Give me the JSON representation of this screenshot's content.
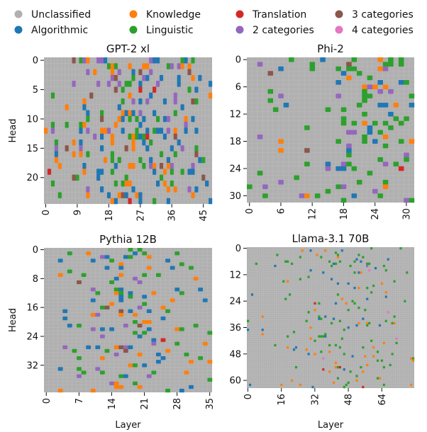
{
  "legend": [
    {
      "label": "Unclassified",
      "color": "#b0b0b0"
    },
    {
      "label": "Algorithmic",
      "color": "#1f77b4"
    },
    {
      "label": "Knowledge",
      "color": "#ff7f0e"
    },
    {
      "label": "Linguistic",
      "color": "#2ca02c"
    },
    {
      "label": "Translation",
      "color": "#d62728"
    },
    {
      "label": "2 categories",
      "color": "#9467bd"
    },
    {
      "label": "3 categories",
      "color": "#8c564b"
    },
    {
      "label": "4 categories",
      "color": "#e377c2"
    }
  ],
  "chart_data": [
    {
      "type": "heatmap",
      "title": "GPT-2 xl",
      "xlabel": "",
      "ylabel": "Head",
      "n_layers": 48,
      "n_heads": 25,
      "xticks": [
        0,
        9,
        18,
        27,
        36,
        45
      ],
      "yticks": [
        0,
        5,
        10,
        15,
        20
      ],
      "background_category": "Unclassified",
      "density": 0.17,
      "layer_weight_peak": 0.55,
      "category_mix": {
        "Algorithmic": 0.32,
        "Knowledge": 0.2,
        "Linguistic": 0.24,
        "2 categories": 0.16,
        "3 categories": 0.06,
        "Translation": 0.01,
        "4 categories": 0.01
      }
    },
    {
      "type": "heatmap",
      "title": "Phi-2",
      "xlabel": "",
      "ylabel": "",
      "n_layers": 32,
      "n_heads": 32,
      "xticks": [
        0,
        6,
        12,
        18,
        24,
        30
      ],
      "yticks": [
        0,
        6,
        12,
        18,
        24,
        30
      ],
      "background_category": "Unclassified",
      "density": 0.14,
      "layer_weight_peak": 0.8,
      "category_mix": {
        "Linguistic": 0.55,
        "Algorithmic": 0.14,
        "Knowledge": 0.1,
        "2 categories": 0.14,
        "3 categories": 0.05,
        "Translation": 0.02
      }
    },
    {
      "type": "heatmap",
      "title": "Pythia 12B",
      "xlabel": "Layer",
      "ylabel": "Head",
      "n_layers": 36,
      "n_heads": 40,
      "xticks": [
        0,
        7,
        14,
        21,
        28,
        35
      ],
      "yticks": [
        0,
        8,
        16,
        24,
        32
      ],
      "background_category": "Unclassified",
      "density": 0.1,
      "layer_weight_peak": 0.5,
      "category_mix": {
        "Algorithmic": 0.28,
        "Knowledge": 0.24,
        "Linguistic": 0.3,
        "2 categories": 0.1,
        "3 categories": 0.06,
        "Translation": 0.02
      }
    },
    {
      "type": "heatmap",
      "title": "Llama-3.1 70B",
      "xlabel": "Layer",
      "ylabel": "",
      "n_layers": 80,
      "n_heads": 64,
      "xticks": [
        0,
        16,
        32,
        48,
        64
      ],
      "yticks": [
        0,
        12,
        24,
        36,
        48,
        60
      ],
      "background_category": "Unclassified",
      "density": 0.035,
      "layer_weight_peak": 0.65,
      "category_mix": {
        "Linguistic": 0.45,
        "Knowledge": 0.3,
        "Algorithmic": 0.17,
        "2 categories": 0.03,
        "Translation": 0.03,
        "4 categories": 0.02
      }
    }
  ]
}
